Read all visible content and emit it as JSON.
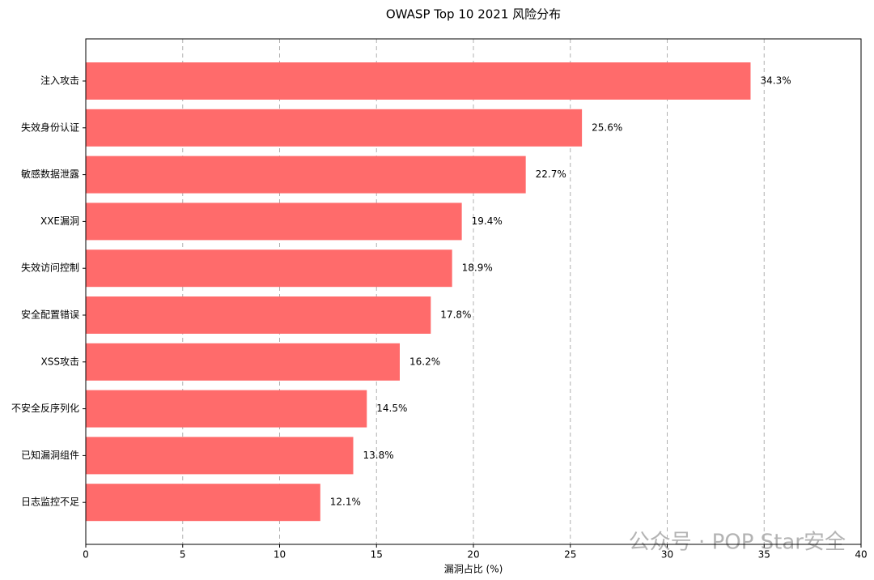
{
  "chart_data": {
    "type": "barh",
    "title": "OWASP Top 10 2021 风险分布",
    "categories": [
      "注入攻击",
      "失效身份认证",
      "敏感数据泄露",
      "XXE漏洞",
      "失效访问控制",
      "安全配置错误",
      "XSS攻击",
      "不安全反序列化",
      "已知漏洞组件",
      "日志监控不足"
    ],
    "values": [
      34.3,
      25.6,
      22.7,
      19.4,
      18.9,
      17.8,
      16.2,
      14.5,
      13.8,
      12.1
    ],
    "value_labels": [
      "34.3%",
      "25.6%",
      "22.7%",
      "19.4%",
      "18.9%",
      "17.8%",
      "16.2%",
      "14.5%",
      "13.8%",
      "12.1%"
    ],
    "color": "#ff6b6b",
    "xlabel": "漏洞占比 (%)",
    "xlim": [
      0,
      40
    ],
    "xticks": [
      0,
      5,
      10,
      15,
      20,
      25,
      30,
      35,
      40
    ],
    "grid": true,
    "watermark": "公众号 · POP Star安全"
  }
}
